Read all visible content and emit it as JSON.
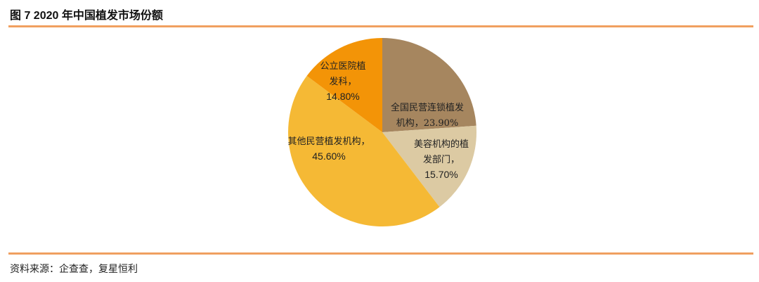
{
  "title": "图 7 2020  年中国植发市场份额",
  "source": "资料来源：企查查，复星恒利",
  "chart_data": {
    "type": "pie",
    "title": "",
    "start": "top",
    "direction": "clockwise",
    "slices": [
      {
        "label": "全国民营连锁植发机构",
        "value": 23.9,
        "text": "23.90%",
        "color": "#a6865f",
        "lines": [
          "全国民营连锁植发",
          "机构，23.90%"
        ]
      },
      {
        "label": "美容机构的植发部门",
        "value": 15.7,
        "text": "15.70%",
        "color": "#dccaa3",
        "lines": [
          "美容机构的植",
          "发部门，",
          "15.70%"
        ]
      },
      {
        "label": "其他民营植发机构",
        "value": 45.6,
        "text": "45.60%",
        "color": "#f5b935",
        "lines": [
          "其他民营植发机构，",
          "45.60%"
        ]
      },
      {
        "label": "公立医院植发科",
        "value": 14.8,
        "text": "14.80%",
        "color": "#f39407",
        "lines": [
          "公立医院植",
          "发科，",
          "14.80%"
        ]
      }
    ]
  }
}
